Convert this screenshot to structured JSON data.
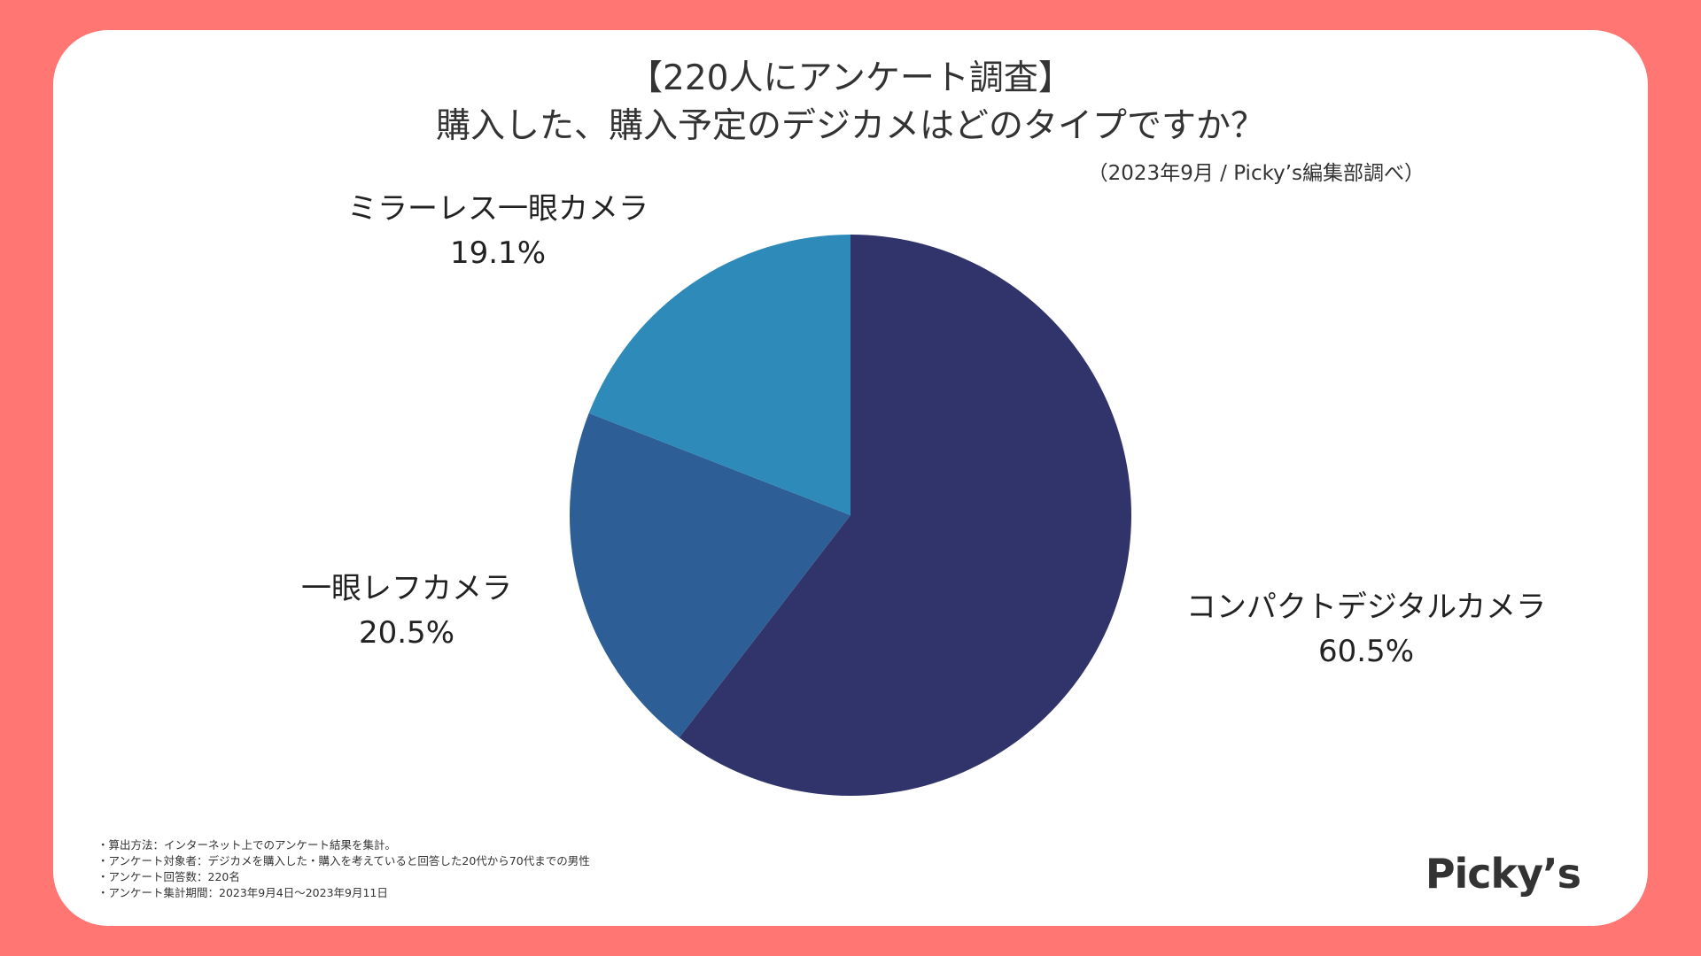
{
  "header": {
    "title_line1": "【220人にアンケート調査】",
    "title_line2": "購入した、購入予定のデジカメはどのタイプですか？",
    "source": "（2023年9月 / Picky’s編集部調べ）"
  },
  "chart_data": {
    "type": "pie",
    "start_angle_deg": 0,
    "direction": "clockwise",
    "slices": [
      {
        "label": "コンパクトデジタルカメラ",
        "value": 60.5,
        "value_label": "60.5%",
        "color": "#30346b"
      },
      {
        "label": "一眼レフカメラ",
        "value": 20.5,
        "value_label": "20.5%",
        "color": "#2d5e96"
      },
      {
        "label": "ミラーレス一眼カメラ",
        "value": 19.1,
        "value_label": "19.1%",
        "color": "#2e8ab8"
      }
    ]
  },
  "notes": [
    "・算出方法：インターネット上でのアンケート結果を集計。",
    "・アンケート対象者：デジカメを購入した・購入を考えていると回答した20代から70代までの男性",
    "・アンケート回答数：220名",
    "・アンケート集計期間：2023年9月4日〜2023年9月11日"
  ],
  "logo": {
    "text": "Picky’s"
  },
  "colors": {
    "background": "#ff7672",
    "card": "#ffffff",
    "text": "#333333"
  }
}
